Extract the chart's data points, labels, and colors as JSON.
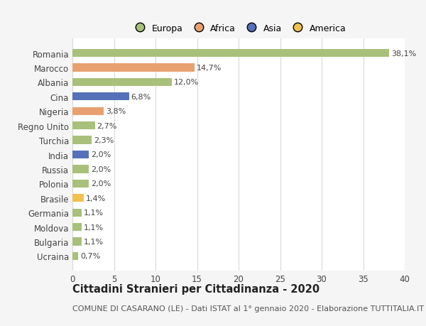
{
  "categories": [
    "Ucraina",
    "Bulgaria",
    "Moldova",
    "Germania",
    "Brasile",
    "Polonia",
    "Russia",
    "India",
    "Turchia",
    "Regno Unito",
    "Nigeria",
    "Cina",
    "Albania",
    "Marocco",
    "Romania"
  ],
  "values": [
    0.7,
    1.1,
    1.1,
    1.1,
    1.4,
    2.0,
    2.0,
    2.0,
    2.3,
    2.7,
    3.8,
    6.8,
    12.0,
    14.7,
    38.1
  ],
  "colors": [
    "#a8c07a",
    "#a8c07a",
    "#a8c07a",
    "#a8c07a",
    "#f0c050",
    "#a8c07a",
    "#a8c07a",
    "#5570b8",
    "#a8c07a",
    "#a8c07a",
    "#e8a070",
    "#5570b8",
    "#a8c07a",
    "#e8a070",
    "#a8c07a"
  ],
  "label_texts": [
    "0,7%",
    "1,1%",
    "1,1%",
    "1,1%",
    "1,4%",
    "2,0%",
    "2,0%",
    "2,0%",
    "2,3%",
    "2,7%",
    "3,8%",
    "6,8%",
    "12,0%",
    "14,7%",
    "38,1%"
  ],
  "legend_labels": [
    "Europa",
    "Africa",
    "Asia",
    "America"
  ],
  "legend_colors": [
    "#a8c07a",
    "#e8a070",
    "#5570b8",
    "#f0c050"
  ],
  "title": "Cittadini Stranieri per Cittadinanza - 2020",
  "subtitle": "COMUNE DI CASARANO (LE) - Dati ISTAT al 1° gennaio 2020 - Elaborazione TUTTITALIA.IT",
  "xlim": [
    0,
    40
  ],
  "xticks": [
    0,
    5,
    10,
    15,
    20,
    25,
    30,
    35,
    40
  ],
  "background_color": "#f5f5f5",
  "plot_background": "#ffffff",
  "grid_color": "#d8d8d8",
  "bar_height": 0.55,
  "title_fontsize": 10.5,
  "subtitle_fontsize": 8.0,
  "tick_fontsize": 8.5,
  "label_fontsize": 8.0,
  "legend_fontsize": 9.0
}
